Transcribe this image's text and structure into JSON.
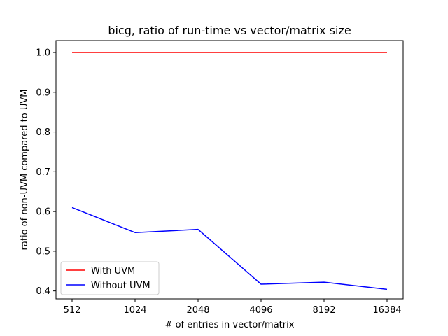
{
  "chart_data": {
    "type": "line",
    "title": "bicg, ratio of run-time vs vector/matrix size",
    "xlabel": "# of entries in vector/matrix",
    "ylabel": "ratio of non-UVM compared to UVM",
    "categories": [
      "512",
      "1024",
      "2048",
      "4096",
      "8192",
      "16384"
    ],
    "ylim": [
      0.38,
      1.03
    ],
    "yticks": [
      "0.4",
      "0.5",
      "0.6",
      "0.7",
      "0.8",
      "0.9",
      "1.0"
    ],
    "grid": false,
    "legend_position": "lower-left",
    "series": [
      {
        "name": "With UVM",
        "color": "#ff0000",
        "values": [
          1.0,
          1.0,
          1.0,
          1.0,
          1.0,
          1.0
        ]
      },
      {
        "name": "Without UVM",
        "color": "#0000ff",
        "values": [
          0.61,
          0.547,
          0.555,
          0.417,
          0.422,
          0.404
        ]
      }
    ]
  }
}
